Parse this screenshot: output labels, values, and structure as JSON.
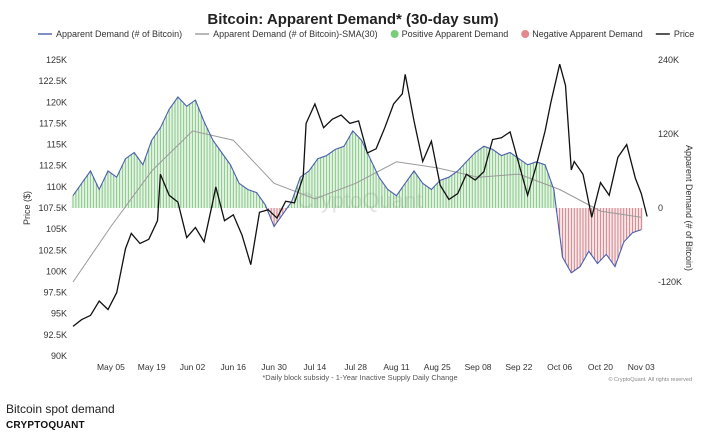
{
  "chart_data": {
    "type": "line",
    "title": "Bitcoin: Apparent Demand* (30-day sum)",
    "legend": [
      {
        "label": "Apparent Demand (# of Bitcoin)",
        "style": "line",
        "color": "#4a5fae"
      },
      {
        "label": "Apparent Demand (# of Bitcoin)-SMA(30)",
        "style": "line",
        "color": "#9a9a9a"
      },
      {
        "label": "Positive Apparent Demand",
        "style": "dot",
        "color": "#7ccb7a"
      },
      {
        "label": "Negative Apparent Demand",
        "style": "dot",
        "color": "#e3898d"
      },
      {
        "label": "Price",
        "style": "line",
        "color": "#111111"
      }
    ],
    "legend_position": "top",
    "ylabel_left": "Price ($)",
    "ylabel_right": "Apparent Demand (# of Bitcoin)",
    "footnote": "*Daily block subsidy - 1-Year Inactive Supply Daily Change",
    "watermark": "CryptoQuant",
    "copyright": "© CryptoQuant. All rights reserved",
    "y_left_ticks": [
      "125K",
      "122.5K",
      "120K",
      "117.5K",
      "115K",
      "112.5K",
      "110K",
      "107.5K",
      "105K",
      "102.5K",
      "100K",
      "97.5K",
      "95K",
      "92.5K",
      "90K"
    ],
    "y_left_range": [
      90000,
      125000
    ],
    "y_right_ticks": [
      "240K",
      "120K",
      "0",
      "-120K"
    ],
    "y_right_range": [
      -240000,
      240000
    ],
    "x_ticks": [
      "May 05",
      "May 19",
      "Jun 02",
      "Jun 16",
      "Jun 30",
      "Jul 14",
      "Jul 28",
      "Aug 11",
      "Aug 25",
      "Sep 08",
      "Sep 22",
      "Oct 06",
      "Oct 20",
      "Nov 03"
    ],
    "x_range": [
      "2025-04-22",
      "2025-11-06"
    ],
    "grid": false,
    "series": [
      {
        "name": "Price",
        "axis": "left",
        "color": "#111111",
        "x": [
          "2025-04-22",
          "2025-04-25",
          "2025-04-28",
          "2025-05-01",
          "2025-05-04",
          "2025-05-07",
          "2025-05-10",
          "2025-05-12",
          "2025-05-15",
          "2025-05-18",
          "2025-05-21",
          "2025-05-22",
          "2025-05-25",
          "2025-05-28",
          "2025-05-31",
          "2025-06-03",
          "2025-06-06",
          "2025-06-09",
          "2025-06-10",
          "2025-06-13",
          "2025-06-16",
          "2025-06-19",
          "2025-06-22",
          "2025-06-25",
          "2025-06-28",
          "2025-07-01",
          "2025-07-04",
          "2025-07-07",
          "2025-07-10",
          "2025-07-11",
          "2025-07-14",
          "2025-07-17",
          "2025-07-20",
          "2025-07-23",
          "2025-07-26",
          "2025-07-29",
          "2025-08-01",
          "2025-08-04",
          "2025-08-07",
          "2025-08-10",
          "2025-08-13",
          "2025-08-14",
          "2025-08-17",
          "2025-08-20",
          "2025-08-23",
          "2025-08-26",
          "2025-08-29",
          "2025-09-01",
          "2025-09-04",
          "2025-09-07",
          "2025-09-10",
          "2025-09-13",
          "2025-09-16",
          "2025-09-19",
          "2025-09-22",
          "2025-09-25",
          "2025-09-28",
          "2025-10-01",
          "2025-10-03",
          "2025-10-06",
          "2025-10-08",
          "2025-10-10",
          "2025-10-11",
          "2025-10-14",
          "2025-10-17",
          "2025-10-20",
          "2025-10-23",
          "2025-10-26",
          "2025-10-29",
          "2025-11-01",
          "2025-11-03",
          "2025-11-05"
        ],
        "values": [
          93500,
          94300,
          94800,
          96500,
          95500,
          97500,
          102700,
          104500,
          103300,
          103800,
          106000,
          111500,
          109000,
          108200,
          104000,
          105200,
          103500,
          108300,
          110000,
          106000,
          106700,
          104300,
          100800,
          107000,
          107300,
          106300,
          108300,
          108100,
          111200,
          117500,
          119800,
          117000,
          118000,
          118500,
          117500,
          117800,
          114000,
          114500,
          117000,
          119800,
          121000,
          123300,
          117800,
          113000,
          115400,
          110200,
          108500,
          109200,
          111500,
          110800,
          111800,
          115600,
          115800,
          116500,
          112700,
          109000,
          112500,
          116600,
          120000,
          124500,
          122000,
          112000,
          113000,
          111500,
          106400,
          110500,
          109000,
          113500,
          115000,
          111000,
          109200,
          106500
        ]
      },
      {
        "name": "Apparent Demand (# of Bitcoin)",
        "axis": "right",
        "color": "#4a5fae",
        "x": [
          "2025-04-22",
          "2025-04-25",
          "2025-04-28",
          "2025-05-01",
          "2025-05-04",
          "2025-05-07",
          "2025-05-10",
          "2025-05-13",
          "2025-05-16",
          "2025-05-19",
          "2025-05-22",
          "2025-05-25",
          "2025-05-28",
          "2025-05-31",
          "2025-06-03",
          "2025-06-06",
          "2025-06-09",
          "2025-06-12",
          "2025-06-15",
          "2025-06-18",
          "2025-06-21",
          "2025-06-24",
          "2025-06-27",
          "2025-06-30",
          "2025-07-03",
          "2025-07-06",
          "2025-07-09",
          "2025-07-12",
          "2025-07-15",
          "2025-07-18",
          "2025-07-21",
          "2025-07-24",
          "2025-07-27",
          "2025-07-30",
          "2025-08-02",
          "2025-08-05",
          "2025-08-08",
          "2025-08-11",
          "2025-08-14",
          "2025-08-17",
          "2025-08-20",
          "2025-08-23",
          "2025-08-26",
          "2025-08-29",
          "2025-09-01",
          "2025-09-04",
          "2025-09-07",
          "2025-09-10",
          "2025-09-13",
          "2025-09-16",
          "2025-09-19",
          "2025-09-22",
          "2025-09-25",
          "2025-09-28",
          "2025-10-01",
          "2025-10-04",
          "2025-10-07",
          "2025-10-10",
          "2025-10-13",
          "2025-10-16",
          "2025-10-19",
          "2025-10-22",
          "2025-10-25",
          "2025-10-28",
          "2025-10-31",
          "2025-11-03"
        ],
        "values": [
          20000,
          40000,
          60000,
          30000,
          60000,
          50000,
          80000,
          90000,
          70000,
          110000,
          130000,
          160000,
          180000,
          165000,
          175000,
          140000,
          110000,
          90000,
          70000,
          40000,
          30000,
          25000,
          5000,
          -30000,
          -10000,
          10000,
          50000,
          60000,
          80000,
          85000,
          95000,
          100000,
          125000,
          110000,
          80000,
          50000,
          30000,
          20000,
          40000,
          60000,
          40000,
          30000,
          45000,
          50000,
          60000,
          75000,
          90000,
          100000,
          95000,
          85000,
          90000,
          80000,
          70000,
          75000,
          70000,
          30000,
          -80000,
          -105000,
          -95000,
          -70000,
          -90000,
          -75000,
          -95000,
          -55000,
          -40000,
          -35000
        ]
      },
      {
        "name": "Apparent Demand (# of Bitcoin)-SMA(30)",
        "axis": "right",
        "color": "#9a9a9a",
        "x": [
          "2025-04-22",
          "2025-05-05",
          "2025-05-19",
          "2025-06-02",
          "2025-06-16",
          "2025-06-30",
          "2025-07-14",
          "2025-07-28",
          "2025-08-11",
          "2025-08-25",
          "2025-09-08",
          "2025-09-22",
          "2025-10-06",
          "2025-10-20",
          "2025-11-03"
        ],
        "values": [
          -120000,
          -30000,
          60000,
          125000,
          110000,
          40000,
          15000,
          40000,
          75000,
          65000,
          50000,
          55000,
          30000,
          -5000,
          -15000
        ]
      }
    ]
  },
  "caption": "Bitcoin spot demand",
  "source": "CRYPTOQUANT"
}
